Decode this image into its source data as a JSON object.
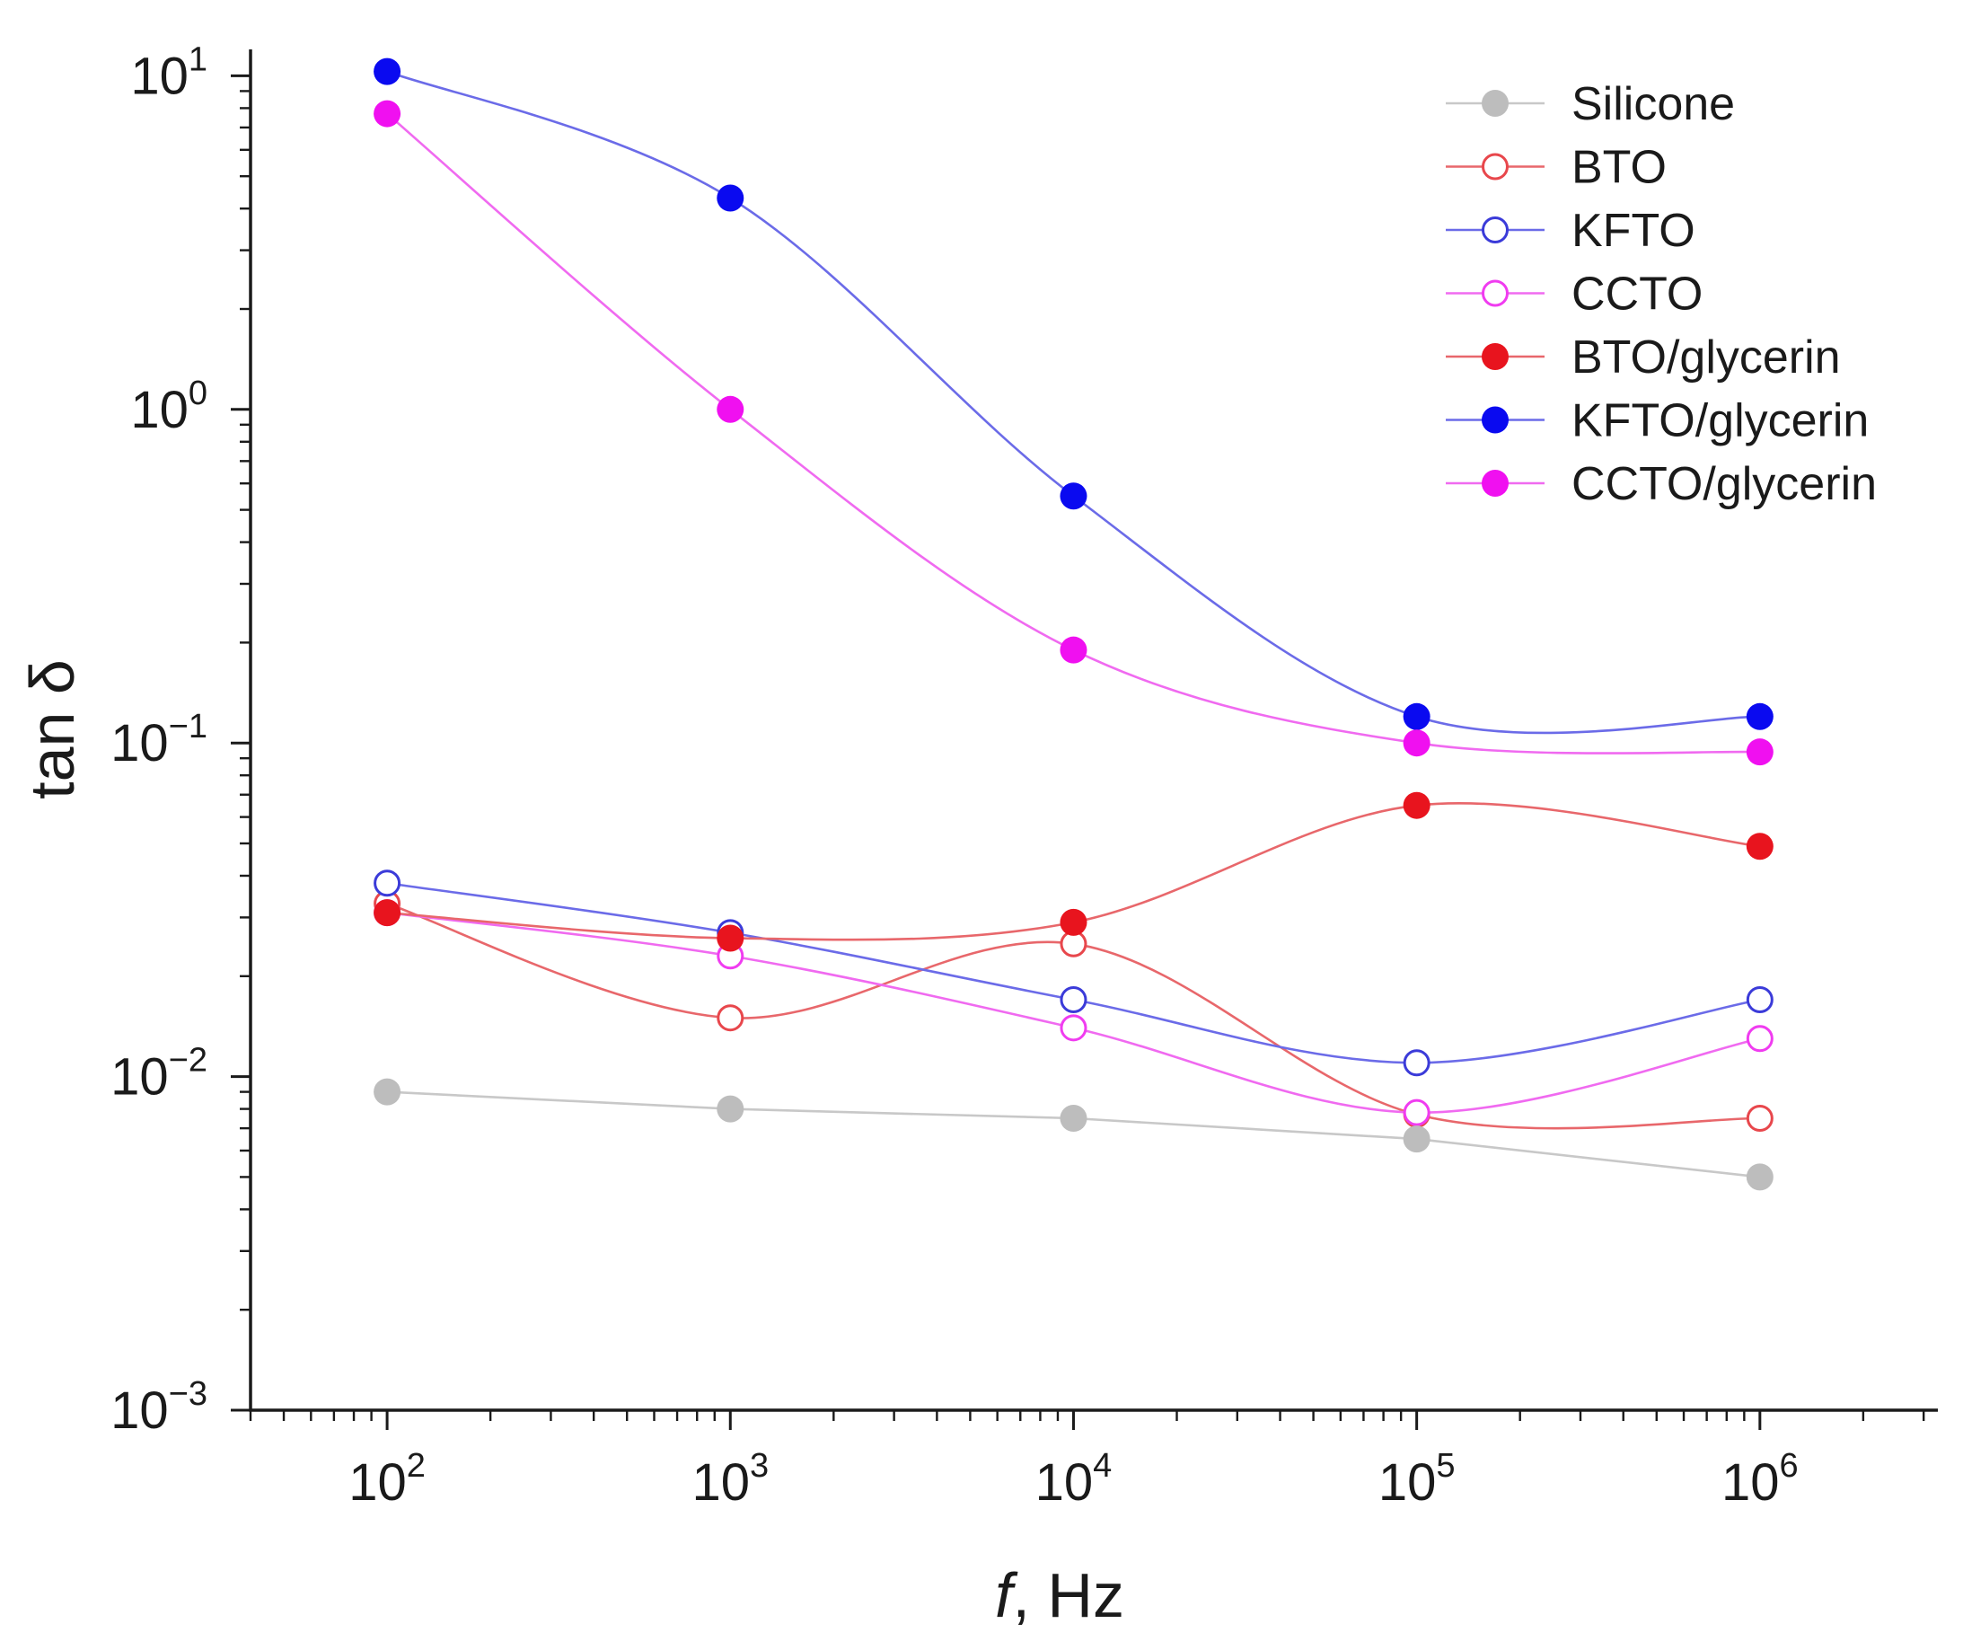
{
  "chart_data": {
    "type": "scatter",
    "x_scale": "log",
    "y_scale": "log",
    "xlabel_italic": "f",
    "xlabel_rest": ", Hz",
    "ylabel": "tan δ",
    "xlim": [
      40,
      3300000
    ],
    "ylim": [
      0.001,
      12
    ],
    "x_ticks": [
      {
        "value": 100,
        "base": "10",
        "exp": "2"
      },
      {
        "value": 1000,
        "base": "10",
        "exp": "3"
      },
      {
        "value": 10000,
        "base": "10",
        "exp": "4"
      },
      {
        "value": 100000,
        "base": "10",
        "exp": "5"
      },
      {
        "value": 1000000,
        "base": "10",
        "exp": "6"
      }
    ],
    "y_ticks": [
      {
        "value": 0.001,
        "base": "10",
        "exp": "−3"
      },
      {
        "value": 0.01,
        "base": "10",
        "exp": "−2"
      },
      {
        "value": 0.1,
        "base": "10",
        "exp": "−1"
      },
      {
        "value": 1,
        "base": "10",
        "exp": "0"
      },
      {
        "value": 10,
        "base": "10",
        "exp": "1"
      }
    ],
    "x": [
      100,
      1000,
      10000,
      100000,
      1000000
    ],
    "legend_position": "top-right",
    "series": [
      {
        "name": "Silicone",
        "color": "#bdbdbd",
        "line_color": "#c8c8c8",
        "filled": true,
        "values": [
          0.009,
          0.008,
          0.0075,
          0.0065,
          0.005
        ],
        "curve": "linear"
      },
      {
        "name": "BTO",
        "color": "#e8474c",
        "line_color": "#e8676b",
        "filled": false,
        "values": [
          0.033,
          0.015,
          0.025,
          0.0077,
          0.0075
        ],
        "curve": "smooth"
      },
      {
        "name": "KFTO",
        "color": "#3b3bd9",
        "line_color": "#6b6be8",
        "filled": false,
        "values": [
          0.038,
          0.027,
          0.017,
          0.011,
          0.017
        ],
        "curve": "smooth"
      },
      {
        "name": "CCTO",
        "color": "#f03cf0",
        "line_color": "#f06af0",
        "filled": false,
        "values": [
          0.031,
          0.023,
          0.014,
          0.0078,
          0.013
        ],
        "curve": "smooth"
      },
      {
        "name": "BTO/glycerin",
        "color": "#e8141e",
        "line_color": "#e8676b",
        "filled": true,
        "values": [
          0.031,
          0.026,
          0.029,
          0.065,
          0.049
        ],
        "curve": "smooth"
      },
      {
        "name": "KFTO/glycerin",
        "color": "#0a0af0",
        "line_color": "#6b6be8",
        "filled": true,
        "values": [
          10.3,
          4.3,
          0.55,
          0.12,
          0.12
        ],
        "curve": "smooth"
      },
      {
        "name": "CCTO/glycerin",
        "color": "#f010f0",
        "line_color": "#f06af0",
        "filled": true,
        "values": [
          7.7,
          1.0,
          0.19,
          0.1,
          0.094
        ],
        "curve": "smooth"
      }
    ]
  }
}
